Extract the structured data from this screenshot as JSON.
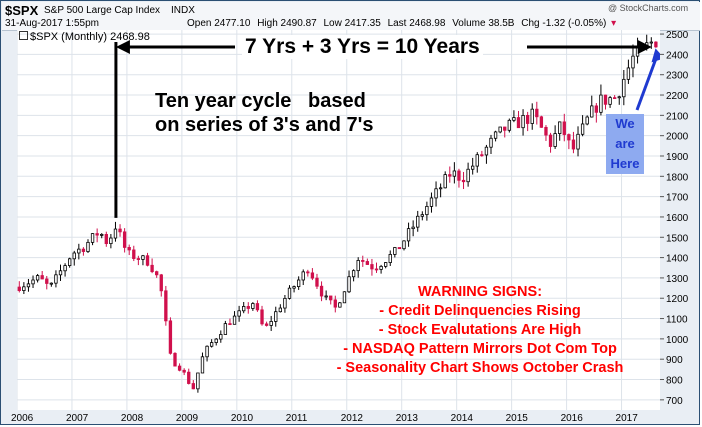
{
  "header": {
    "symbol": "$SPX",
    "name": "S&P 500 Large Cap Index",
    "exchange": "INDX",
    "date": "31-Aug-2017 1:55pm",
    "open_label": "Open",
    "open": "2477.10",
    "high_label": "High",
    "high": "2490.87",
    "low_label": "Low",
    "low": "2417.35",
    "last_label": "Last",
    "last": "2468.98",
    "volume_label": "Volume",
    "volume": "38.5B",
    "chg_label": "Chg",
    "chg": "-1.32 (-0.05%)",
    "chg_arrow": "▾",
    "copyright": "@ StockCharts.com"
  },
  "legend": {
    "text": "$SPX (Monthly) 2468.98"
  },
  "annotations": {
    "span_label": "7 Yrs + 3 Yrs = 10 Years",
    "cycle_line1": "Ten year cycle   based",
    "cycle_line2": "on series of 3's and 7's",
    "we_are_here": [
      "We",
      "are",
      "Here"
    ],
    "warning_title": "WARNING SIGNS:",
    "warning_items": [
      "- Credit Delinquencies Rising",
      "- Stock Evalutations Are High",
      "- NASDAQ Pattern Mirrors Dot Com Top",
      "- Seasonality Chart Shows October Crash"
    ]
  },
  "colors": {
    "up": "#000000",
    "down": "#d0104c",
    "warning": "#ff0000",
    "arrow_blue": "#1f3ad0",
    "here_box": "#8eaaf0",
    "grid": "#dde3ea",
    "frame": "#2b4f73"
  },
  "chart_data": {
    "type": "candlestick",
    "title": "$SPX (Monthly)",
    "last_value": 2468.98,
    "x_range": [
      2006.0,
      2017.7
    ],
    "ylim": [
      650,
      2520
    ],
    "x_ticks": [
      {
        "value": 2006,
        "label": "2006"
      },
      {
        "value": 2007,
        "label": "2007"
      },
      {
        "value": 2008,
        "label": "2008"
      },
      {
        "value": 2009,
        "label": "2009"
      },
      {
        "value": 2010,
        "label": "2010"
      },
      {
        "value": 2011,
        "label": "2011"
      },
      {
        "value": 2012,
        "label": "2012"
      },
      {
        "value": 2013,
        "label": "2013"
      },
      {
        "value": 2014,
        "label": "2014"
      },
      {
        "value": 2015,
        "label": "2015"
      },
      {
        "value": 2016,
        "label": "2016"
      },
      {
        "value": 2017,
        "label": "2017"
      }
    ],
    "y_ticks": [
      700,
      800,
      900,
      1000,
      1100,
      1200,
      1300,
      1400,
      1500,
      1600,
      1700,
      1800,
      1900,
      2000,
      2100,
      2200,
      2300,
      2400,
      2500
    ],
    "anchors": [
      [
        2006.0,
        1255
      ],
      [
        2006.4,
        1300
      ],
      [
        2006.6,
        1250
      ],
      [
        2007.0,
        1420
      ],
      [
        2007.2,
        1450
      ],
      [
        2007.5,
        1530
      ],
      [
        2007.65,
        1470
      ],
      [
        2007.8,
        1560
      ],
      [
        2008.0,
        1420
      ],
      [
        2008.4,
        1380
      ],
      [
        2008.6,
        1280
      ],
      [
        2008.8,
        900
      ],
      [
        2009.0,
        850
      ],
      [
        2009.2,
        750
      ],
      [
        2009.4,
        930
      ],
      [
        2009.8,
        1070
      ],
      [
        2010.3,
        1180
      ],
      [
        2010.5,
        1040
      ],
      [
        2010.9,
        1210
      ],
      [
        2011.3,
        1350
      ],
      [
        2011.6,
        1200
      ],
      [
        2011.8,
        1150
      ],
      [
        2012.2,
        1400
      ],
      [
        2012.5,
        1350
      ],
      [
        2012.9,
        1430
      ],
      [
        2013.4,
        1630
      ],
      [
        2013.9,
        1820
      ],
      [
        2014.1,
        1790
      ],
      [
        2014.7,
        1990
      ],
      [
        2014.9,
        2040
      ],
      [
        2015.4,
        2100
      ],
      [
        2015.7,
        1960
      ],
      [
        2015.9,
        2050
      ],
      [
        2016.1,
        1920
      ],
      [
        2016.4,
        2090
      ],
      [
        2016.6,
        2170
      ],
      [
        2016.9,
        2190
      ],
      [
        2017.2,
        2380
      ],
      [
        2017.6,
        2470
      ],
      [
        2017.667,
        2469
      ]
    ],
    "peak_2007": {
      "x": 2007.8,
      "value": 1576
    },
    "span_2017": {
      "x": 2017.55
    }
  }
}
